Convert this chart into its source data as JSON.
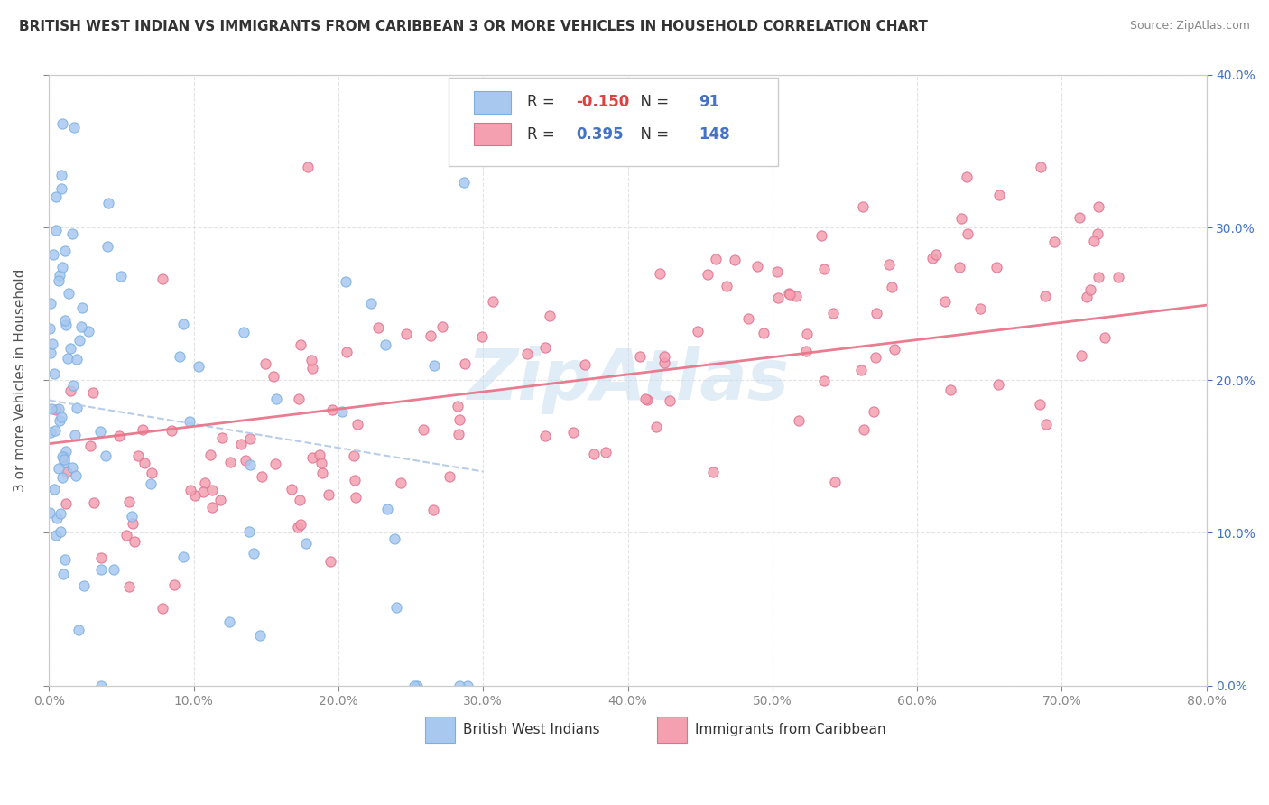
{
  "title": "BRITISH WEST INDIAN VS IMMIGRANTS FROM CARIBBEAN 3 OR MORE VEHICLES IN HOUSEHOLD CORRELATION CHART",
  "source": "Source: ZipAtlas.com",
  "ylabel": "3 or more Vehicles in Household",
  "xmin": 0.0,
  "xmax": 80.0,
  "ymin": 0.0,
  "ymax": 40.0,
  "series1_label": "British West Indians",
  "series1_color": "#a8c8f0",
  "series1_edge": "#7ab0e0",
  "series1_R": -0.15,
  "series1_N": 91,
  "series1_line_color": "#b0c8e8",
  "series2_label": "Immigrants from Caribbean",
  "series2_color": "#f4a0b0",
  "series2_edge": "#e07090",
  "series2_R": 0.395,
  "series2_N": 148,
  "series2_line_color": "#e8758a",
  "watermark": "ZipAtlas",
  "background_color": "#ffffff",
  "grid_color": "#e0e0e0"
}
